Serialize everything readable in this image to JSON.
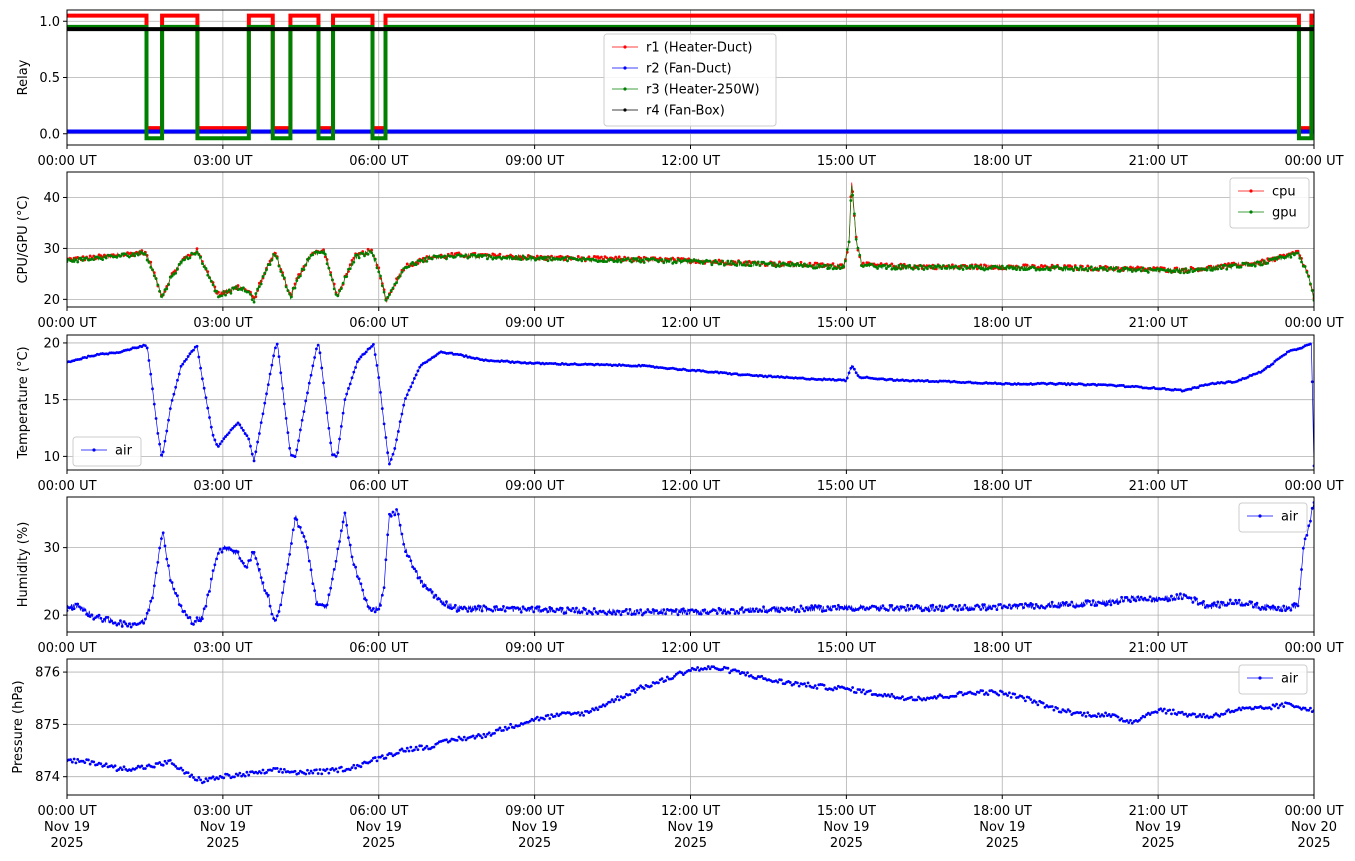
{
  "colors": {
    "r1": "#ff0000",
    "r2": "#0000ff",
    "r3": "#008000",
    "r4": "#000000",
    "cpu": "#ff0000",
    "gpu": "#008000",
    "air": "#0000ff"
  },
  "x_ticks": [
    "00:00 UT",
    "03:00 UT",
    "06:00 UT",
    "09:00 UT",
    "12:00 UT",
    "15:00 UT",
    "18:00 UT",
    "21:00 UT",
    "00:00 UT"
  ],
  "x_date_lines": [
    "Nov 19",
    "Nov 19",
    "Nov 19",
    "Nov 19",
    "Nov 19",
    "Nov 19",
    "Nov 19",
    "Nov 19",
    "Nov 20"
  ],
  "x_year_lines": [
    "2025",
    "2025",
    "2025",
    "2025",
    "2025",
    "2025",
    "2025",
    "2025",
    "2025"
  ],
  "chart_data": [
    {
      "type": "line",
      "ylabel": "Relay",
      "ylim": [
        -0.1,
        1.1
      ],
      "yticks": [
        "0.0",
        "0.5",
        "1.0"
      ],
      "grid": true,
      "legend": "upper-center",
      "x_unit": "hours since 2025-11-19 00:00 UT",
      "xlim": [
        0,
        24
      ],
      "on_intervals": [
        [
          0,
          1.52
        ],
        [
          1.83,
          2.5
        ],
        [
          3.5,
          3.95
        ],
        [
          4.3,
          4.83
        ],
        [
          5.12,
          5.87
        ],
        [
          6.13,
          23.7
        ],
        [
          23.95,
          24
        ]
      ],
      "series": [
        {
          "name": "r1 (Heater-Duct)",
          "on": 1.05,
          "off": 0.05,
          "follows": "on_intervals"
        },
        {
          "name": "r2 (Fan-Duct)",
          "constant": 0.02
        },
        {
          "name": "r3 (Heater-250W)",
          "on": 0.95,
          "off": -0.04,
          "follows": "on_intervals"
        },
        {
          "name": "r4 (Fan-Box)",
          "constant": 0.93
        }
      ]
    },
    {
      "type": "line",
      "ylabel": "CPU/GPU (°C)",
      "ylim": [
        18.5,
        45
      ],
      "yticks": [
        "20",
        "30",
        "40"
      ],
      "grid": true,
      "legend": "upper-right",
      "x": [
        0,
        0.5,
        1.0,
        1.5,
        1.65,
        1.83,
        2.0,
        2.25,
        2.5,
        2.75,
        2.9,
        3.1,
        3.3,
        3.5,
        3.6,
        3.75,
        4.0,
        4.1,
        4.3,
        4.45,
        4.7,
        4.95,
        5.05,
        5.2,
        5.4,
        5.55,
        5.85,
        6.0,
        6.15,
        6.3,
        6.5,
        7.0,
        7.5,
        8.0,
        9.0,
        10.0,
        11.0,
        12.0,
        13.0,
        14.0,
        14.8,
        14.95,
        15.05,
        15.1,
        15.2,
        15.3,
        16.0,
        17.0,
        18.0,
        19.0,
        20.0,
        21.0,
        21.5,
        22.0,
        23.0,
        23.5,
        23.7,
        23.9,
        24.0
      ],
      "series": [
        {
          "name": "cpu",
          "values": [
            27.8,
            28.2,
            28.7,
            29.3,
            26.0,
            20.5,
            24.5,
            28.0,
            29.6,
            24.5,
            21.0,
            21.6,
            22.5,
            21.5,
            20.0,
            24.0,
            29.3,
            26.5,
            20.5,
            24.5,
            29.0,
            29.5,
            26.0,
            20.5,
            25.5,
            28.5,
            29.6,
            26.0,
            19.8,
            23.0,
            26.5,
            28.3,
            28.7,
            28.6,
            28.2,
            28.0,
            27.9,
            27.6,
            27.2,
            26.9,
            26.6,
            26.7,
            31.0,
            43.5,
            31.0,
            26.8,
            26.5,
            26.4,
            26.4,
            26.3,
            26.1,
            25.9,
            25.8,
            26.2,
            27.3,
            28.6,
            29.3,
            24.5,
            20.0
          ]
        },
        {
          "name": "gpu",
          "values": [
            27.6,
            28.0,
            28.5,
            29.1,
            25.8,
            20.3,
            24.3,
            27.8,
            29.4,
            24.3,
            20.8,
            21.4,
            22.3,
            21.3,
            19.8,
            23.8,
            29.1,
            26.3,
            20.3,
            24.3,
            28.8,
            29.3,
            25.8,
            20.3,
            25.3,
            28.3,
            29.4,
            25.8,
            19.6,
            22.8,
            26.3,
            28.1,
            28.5,
            28.4,
            28.0,
            27.8,
            27.7,
            27.4,
            27.0,
            26.7,
            26.4,
            26.5,
            30.8,
            43.0,
            30.8,
            26.6,
            26.3,
            26.2,
            26.2,
            26.1,
            25.9,
            25.7,
            25.6,
            26.0,
            27.1,
            28.4,
            29.1,
            24.3,
            19.8
          ]
        }
      ]
    },
    {
      "type": "line",
      "ylabel": "Temperature (°C)",
      "ylim": [
        8.8,
        20.7
      ],
      "yticks": [
        "10",
        "15",
        "20"
      ],
      "grid": true,
      "legend": "lower-left",
      "x": [
        0,
        0.5,
        1.0,
        1.5,
        1.55,
        1.75,
        1.83,
        2.0,
        2.2,
        2.5,
        2.6,
        2.8,
        2.9,
        3.1,
        3.3,
        3.5,
        3.6,
        3.7,
        3.8,
        4.0,
        4.05,
        4.2,
        4.3,
        4.4,
        4.6,
        4.8,
        4.85,
        5.0,
        5.1,
        5.2,
        5.35,
        5.6,
        5.9,
        6.0,
        6.1,
        6.2,
        6.3,
        6.5,
        6.8,
        7.2,
        7.5,
        8.0,
        9.0,
        10.0,
        11.0,
        12.0,
        13.0,
        14.0,
        15.0,
        15.1,
        15.25,
        16.0,
        17.0,
        18.0,
        19.0,
        20.0,
        21.0,
        21.5,
        22.0,
        22.5,
        23.0,
        23.5,
        23.95,
        24.0
      ],
      "series": [
        {
          "name": "air",
          "values": [
            18.3,
            18.9,
            19.2,
            19.8,
            19.5,
            12.0,
            9.8,
            14.5,
            18.0,
            19.8,
            17.0,
            12.0,
            10.8,
            12.0,
            13.0,
            11.5,
            9.6,
            12.0,
            14.5,
            19.5,
            20.0,
            14.0,
            10.2,
            10.0,
            15.0,
            19.5,
            19.9,
            14.0,
            10.2,
            10.0,
            15.0,
            18.5,
            19.9,
            17.0,
            13.0,
            9.3,
            10.5,
            15.0,
            18.0,
            19.2,
            19.0,
            18.5,
            18.2,
            18.1,
            18.0,
            17.6,
            17.2,
            16.9,
            16.7,
            18.0,
            17.0,
            16.7,
            16.6,
            16.4,
            16.4,
            16.3,
            16.0,
            15.8,
            16.4,
            16.6,
            17.5,
            19.2,
            19.9,
            9.2
          ]
        }
      ]
    },
    {
      "type": "line",
      "ylabel": "Humidity (%)",
      "ylim": [
        17.5,
        37.5
      ],
      "yticks": [
        "20",
        "30"
      ],
      "grid": true,
      "legend": "upper-right",
      "x": [
        0,
        0.2,
        0.5,
        0.9,
        1.2,
        1.5,
        1.65,
        1.8,
        1.85,
        2.0,
        2.2,
        2.4,
        2.6,
        2.75,
        2.9,
        3.1,
        3.3,
        3.45,
        3.6,
        3.75,
        3.9,
        4.0,
        4.15,
        4.3,
        4.4,
        4.6,
        4.8,
        5.0,
        5.2,
        5.35,
        5.5,
        5.8,
        6.0,
        6.1,
        6.2,
        6.35,
        6.5,
        6.8,
        7.2,
        7.5,
        8.0,
        9.0,
        10.0,
        11.0,
        12.0,
        13.0,
        14.0,
        15.0,
        16.0,
        17.0,
        18.0,
        19.0,
        20.0,
        20.5,
        21.0,
        21.5,
        22.0,
        22.5,
        23.0,
        23.5,
        23.7,
        23.8,
        24.0
      ],
      "series": [
        {
          "name": "air",
          "values": [
            21.0,
            21.5,
            19.8,
            19.0,
            18.6,
            19.0,
            23.0,
            31.0,
            32.0,
            25.0,
            21.0,
            19.0,
            19.5,
            24.0,
            29.5,
            30.0,
            29.0,
            27.0,
            29.5,
            25.0,
            22.0,
            18.5,
            23.0,
            30.0,
            34.5,
            31.0,
            22.0,
            21.0,
            29.0,
            35.0,
            28.0,
            21.0,
            20.8,
            24.0,
            34.5,
            35.5,
            30.0,
            25.0,
            22.0,
            21.0,
            21.0,
            20.8,
            20.6,
            20.4,
            20.5,
            20.7,
            20.9,
            21.1,
            21.0,
            21.1,
            21.2,
            21.5,
            21.8,
            22.5,
            22.3,
            22.8,
            21.3,
            22.0,
            21.2,
            21.0,
            21.5,
            30.0,
            36.5
          ]
        }
      ]
    },
    {
      "type": "scatter",
      "ylabel": "Pressure (hPa)",
      "ylim": [
        873.65,
        876.25
      ],
      "yticks": [
        "874",
        "875",
        "876"
      ],
      "grid": true,
      "legend": "upper-right",
      "x": [
        0,
        0.5,
        1.0,
        1.5,
        2.0,
        2.3,
        2.6,
        3.0,
        3.5,
        4.0,
        4.5,
        5.0,
        5.5,
        6.0,
        6.5,
        7.0,
        7.5,
        8.0,
        8.5,
        9.0,
        9.5,
        10.0,
        10.5,
        11.0,
        11.5,
        12.0,
        12.5,
        13.0,
        13.5,
        14.0,
        14.5,
        15.0,
        15.5,
        16.0,
        16.5,
        17.0,
        17.5,
        18.0,
        18.5,
        19.0,
        19.5,
        20.0,
        20.5,
        21.0,
        21.5,
        22.0,
        22.5,
        23.0,
        23.5,
        24.0
      ],
      "series": [
        {
          "name": "air",
          "values": [
            874.3,
            874.28,
            874.15,
            874.18,
            874.28,
            874.05,
            873.92,
            874.0,
            874.05,
            874.12,
            874.08,
            874.1,
            874.18,
            874.35,
            874.52,
            874.58,
            874.72,
            874.78,
            874.95,
            875.1,
            875.18,
            875.22,
            875.45,
            875.68,
            875.85,
            876.05,
            876.08,
            875.98,
            875.85,
            875.78,
            875.72,
            875.68,
            875.6,
            875.52,
            875.5,
            875.55,
            875.62,
            875.6,
            875.48,
            875.3,
            875.2,
            875.18,
            875.05,
            875.28,
            875.2,
            875.15,
            875.28,
            875.3,
            875.38,
            875.28
          ]
        }
      ]
    }
  ]
}
